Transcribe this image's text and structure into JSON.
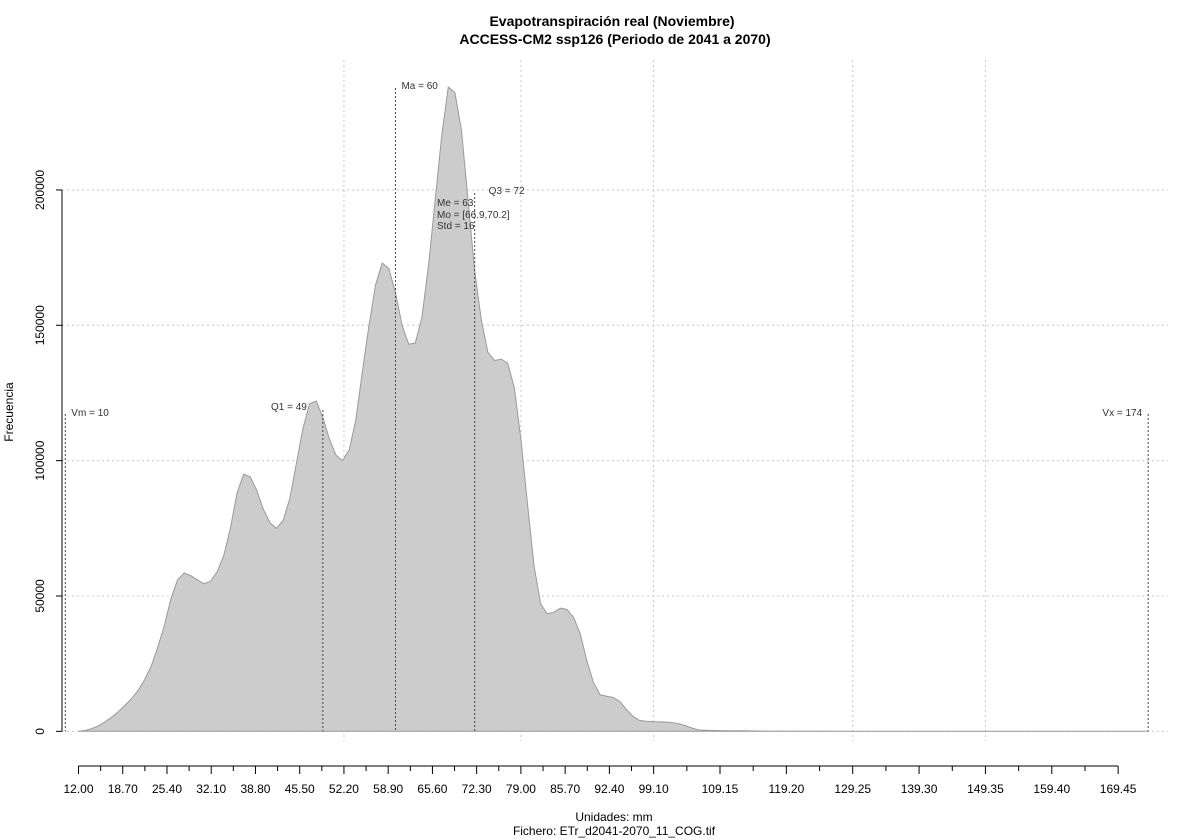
{
  "chart_data": {
    "type": "area",
    "title": "Evapotranspiración real (Noviembre)",
    "subtitle": "ACCESS-CM2 ssp126 (Periodo de 2041 a 2070)",
    "xlabel": "Unidades: mm",
    "caption": "Fichero: ETr_d2041-2070_11_COG.tif",
    "ylabel": "Frecuencia",
    "xlim": [
      9.5,
      177
    ],
    "ylim": [
      -8000,
      248000
    ],
    "fill_color": "#cccccc",
    "line_color": "#9a9a9a",
    "x_ticks_major": [
      12.0,
      18.7,
      25.4,
      32.1,
      38.8,
      45.5,
      52.2,
      58.9,
      65.6,
      72.3,
      79.0,
      85.7,
      92.4,
      99.1,
      109.15,
      119.2,
      129.25,
      139.3,
      149.35,
      159.4,
      169.45
    ],
    "x_tick_labels": [
      "12.00",
      "18.70",
      "25.40",
      "32.10",
      "38.80",
      "45.50",
      "52.20",
      "58.90",
      "65.60",
      "72.30",
      "79.00",
      "85.70",
      "92.40",
      "99.10",
      "109.15",
      "119.20",
      "129.25",
      "139.30",
      "149.35",
      "159.40",
      "169.45"
    ],
    "x_ticks_minor": [
      15.35,
      22.05,
      28.75,
      35.45,
      42.15,
      48.85,
      55.55,
      62.25,
      68.95,
      75.65,
      82.35,
      89.05,
      95.75,
      104.13,
      114.18,
      124.23,
      134.28,
      144.33,
      154.38,
      164.43
    ],
    "x_grid": [
      52.2,
      79.0,
      99.1,
      129.25,
      149.35
    ],
    "y_ticks": [
      0,
      50000,
      100000,
      150000,
      200000
    ],
    "y_tick_labels": [
      "0",
      "50000",
      "100000",
      "150000",
      "200000"
    ],
    "x": [
      12.0,
      13.0,
      14.0,
      15.0,
      16.0,
      17.0,
      18.0,
      19.0,
      20.0,
      21.0,
      22.0,
      23.0,
      24.0,
      25.0,
      26.0,
      27.0,
      28.0,
      29.0,
      30.0,
      31.0,
      32.0,
      33.0,
      34.0,
      35.0,
      36.0,
      37.0,
      38.0,
      39.0,
      40.0,
      41.0,
      42.0,
      43.0,
      44.0,
      45.0,
      46.0,
      47.0,
      48.0,
      49.0,
      50.0,
      51.0,
      52.0,
      53.0,
      54.0,
      55.0,
      56.0,
      57.0,
      58.0,
      59.0,
      60.0,
      61.0,
      62.0,
      63.0,
      64.0,
      65.0,
      66.0,
      67.0,
      68.0,
      69.0,
      70.0,
      71.0,
      72.0,
      73.0,
      74.0,
      75.0,
      76.0,
      77.0,
      78.0,
      79.0,
      80.0,
      81.0,
      82.0,
      83.0,
      84.0,
      85.0,
      86.0,
      87.0,
      88.0,
      89.0,
      90.0,
      91.0,
      92.0,
      93.0,
      94.0,
      95.0,
      96.0,
      97.0,
      98.0,
      99.0,
      100.0,
      101.0,
      102.0,
      103.0,
      104.0,
      105.0,
      106.0,
      107.0,
      108.0,
      110.0,
      113.0,
      116.0,
      120.0,
      130.0,
      140.0,
      150.0,
      160.0,
      170.0,
      174.0
    ],
    "y": [
      0,
      300,
      1000,
      2000,
      3500,
      5200,
      7200,
      9500,
      12000,
      15000,
      19000,
      24000,
      31000,
      39000,
      49000,
      56000,
      58500,
      57500,
      56000,
      54500,
      55500,
      59000,
      65000,
      75000,
      88000,
      95000,
      94000,
      89000,
      82000,
      77000,
      75000,
      78000,
      86000,
      99000,
      112000,
      121000,
      122000,
      116000,
      108000,
      102000,
      100000,
      104000,
      115000,
      133000,
      150000,
      165000,
      173000,
      171000,
      162000,
      150000,
      143000,
      143500,
      153000,
      172000,
      196000,
      220000,
      238000,
      236000,
      222000,
      196000,
      170000,
      152000,
      140000,
      137000,
      137500,
      136000,
      127000,
      108000,
      84000,
      61000,
      47000,
      43500,
      44000,
      45500,
      45000,
      42000,
      36000,
      26000,
      18000,
      13500,
      13000,
      12500,
      11000,
      8000,
      5500,
      4000,
      3700,
      3600,
      3500,
      3400,
      3200,
      2800,
      2000,
      1100,
      500,
      400,
      300,
      250,
      200,
      100,
      80,
      50,
      40,
      30,
      20,
      10,
      0
    ],
    "stats": {
      "vm": {
        "label": "Vm = 10",
        "x": 10
      },
      "q1": {
        "label": "Q1 = 49",
        "x": 49
      },
      "ma": {
        "label": "Ma = 60",
        "x": 60
      },
      "q3": {
        "label": "Q3 = 72",
        "x": 72
      },
      "vx": {
        "label": "Vx = 174",
        "x": 174
      },
      "me": "Me = 63",
      "mo": "Mo = [66.9,70.2]",
      "std": "Std = 16"
    }
  }
}
